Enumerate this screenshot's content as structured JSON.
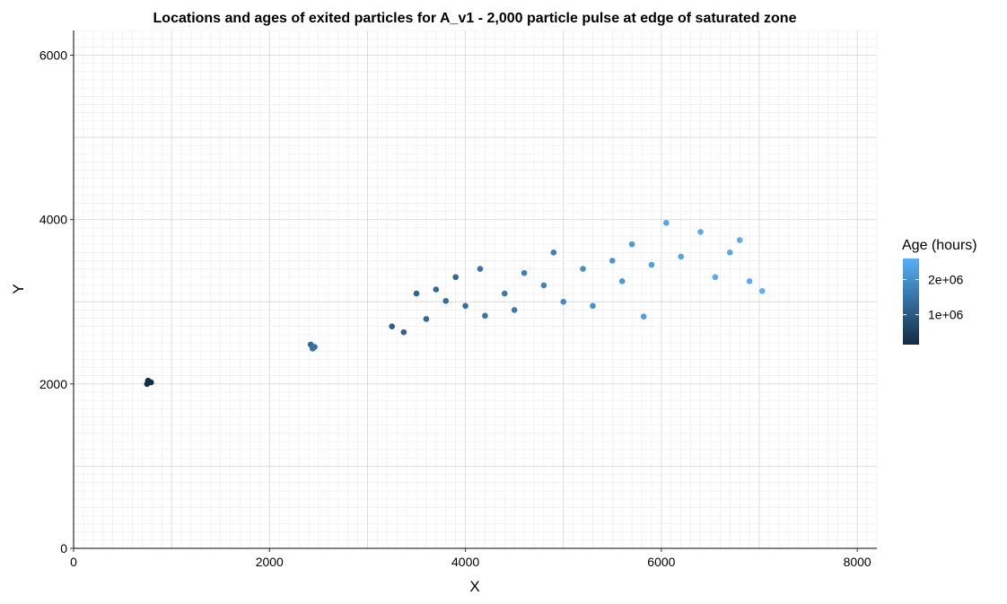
{
  "chart_data": {
    "type": "scatter",
    "title": "Locations and ages of exited particles for A_v1 - 2,000 particle pulse at edge of saturated zone",
    "xlabel": "X",
    "ylabel": "Y",
    "xlim": [
      0,
      8200
    ],
    "ylim": [
      0,
      6300
    ],
    "x_ticks": [
      0,
      2000,
      4000,
      6000,
      8000
    ],
    "y_ticks": [
      0,
      2000,
      4000,
      6000
    ],
    "x_tick_labels": [
      "0",
      "2000",
      "4000",
      "6000",
      "8000"
    ],
    "y_tick_labels": [
      "0",
      "2000",
      "4000",
      "6000"
    ],
    "grid": true,
    "grid_minor_step": 100,
    "color_scale": {
      "title": "Age (hours)",
      "low_color": "#132B43",
      "high_color": "#56B1F7",
      "range": [
        150000,
        2600000
      ],
      "ticks": [
        1000000,
        2000000
      ],
      "tick_labels": [
        "1e+06",
        "2e+06"
      ]
    },
    "legend_position": "right",
    "series": [
      {
        "points": [
          {
            "x": 750,
            "y": 2000,
            "age": 200000
          },
          {
            "x": 770,
            "y": 2030,
            "age": 210000
          },
          {
            "x": 790,
            "y": 2020,
            "age": 200000
          },
          {
            "x": 760,
            "y": 2040,
            "age": 190000
          },
          {
            "x": 2420,
            "y": 2480,
            "age": 1300000
          },
          {
            "x": 2460,
            "y": 2450,
            "age": 1400000
          },
          {
            "x": 2440,
            "y": 2430,
            "age": 1500000
          },
          {
            "x": 3250,
            "y": 2700,
            "age": 1100000
          },
          {
            "x": 3370,
            "y": 2630,
            "age": 1200000
          },
          {
            "x": 3500,
            "y": 3100,
            "age": 1200000
          },
          {
            "x": 3600,
            "y": 2790,
            "age": 1300000
          },
          {
            "x": 3700,
            "y": 3150,
            "age": 1300000
          },
          {
            "x": 3800,
            "y": 3010,
            "age": 1400000
          },
          {
            "x": 3900,
            "y": 3300,
            "age": 1300000
          },
          {
            "x": 4000,
            "y": 2950,
            "age": 1400000
          },
          {
            "x": 4150,
            "y": 3400,
            "age": 1500000
          },
          {
            "x": 4200,
            "y": 2830,
            "age": 1500000
          },
          {
            "x": 4400,
            "y": 3100,
            "age": 1600000
          },
          {
            "x": 4500,
            "y": 2900,
            "age": 1600000
          },
          {
            "x": 4600,
            "y": 3350,
            "age": 1700000
          },
          {
            "x": 4800,
            "y": 3200,
            "age": 1800000
          },
          {
            "x": 4900,
            "y": 3600,
            "age": 1700000
          },
          {
            "x": 5000,
            "y": 3000,
            "age": 1900000
          },
          {
            "x": 5200,
            "y": 3400,
            "age": 2000000
          },
          {
            "x": 5300,
            "y": 2950,
            "age": 2000000
          },
          {
            "x": 5500,
            "y": 3500,
            "age": 2100000
          },
          {
            "x": 5600,
            "y": 3250,
            "age": 2200000
          },
          {
            "x": 5700,
            "y": 3700,
            "age": 2200000
          },
          {
            "x": 5820,
            "y": 2820,
            "age": 2300000
          },
          {
            "x": 5900,
            "y": 3450,
            "age": 2300000
          },
          {
            "x": 6050,
            "y": 3960,
            "age": 2400000
          },
          {
            "x": 6200,
            "y": 3550,
            "age": 2400000
          },
          {
            "x": 6400,
            "y": 3850,
            "age": 2500000
          },
          {
            "x": 6550,
            "y": 3300,
            "age": 2500000
          },
          {
            "x": 6700,
            "y": 3600,
            "age": 2500000
          },
          {
            "x": 6800,
            "y": 3750,
            "age": 2550000
          },
          {
            "x": 6900,
            "y": 3250,
            "age": 2550000
          },
          {
            "x": 7030,
            "y": 3130,
            "age": 2600000
          }
        ]
      }
    ]
  }
}
